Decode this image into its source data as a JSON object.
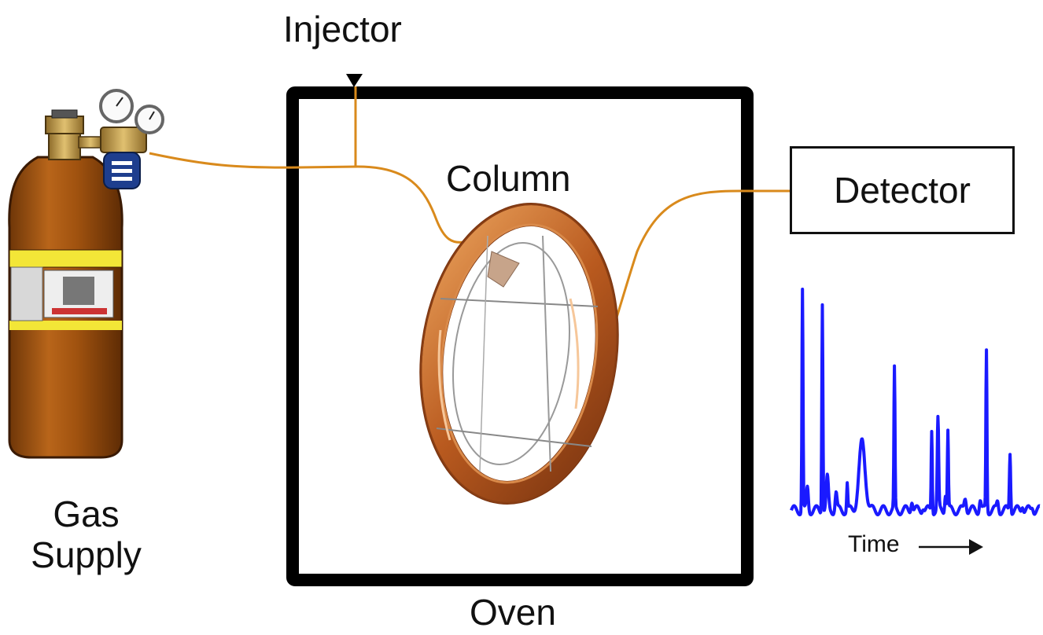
{
  "labels": {
    "injector": "Injector",
    "column": "Column",
    "detector": "Detector",
    "gas_line1": "Gas",
    "gas_line2": "Supply",
    "oven": "Oven",
    "time": "Time"
  },
  "colors": {
    "line": "#d98a1c",
    "oven_frame": "#000000",
    "cylinder": "#a0520f",
    "cylinder_band": "#f3e637",
    "column_copper": "#c8702c",
    "chromatogram": "#1a1aff"
  },
  "icons": {
    "cylinder": "gas-cylinder-icon",
    "regulator": "pressure-regulator-icon",
    "arrow": "right-arrow-icon"
  },
  "chromatogram": {
    "baseline": 0.04,
    "peaks": [
      {
        "t": 0.045,
        "h": 1.0,
        "w": 0.006
      },
      {
        "t": 0.065,
        "h": 0.1,
        "w": 0.01
      },
      {
        "t": 0.125,
        "h": 0.93,
        "w": 0.006
      },
      {
        "t": 0.145,
        "h": 0.14,
        "w": 0.012
      },
      {
        "t": 0.18,
        "h": 0.08,
        "w": 0.01
      },
      {
        "t": 0.225,
        "h": 0.12,
        "w": 0.006
      },
      {
        "t": 0.285,
        "h": 0.3,
        "w": 0.035
      },
      {
        "t": 0.415,
        "h": 0.62,
        "w": 0.006
      },
      {
        "t": 0.485,
        "h": 0.05,
        "w": 0.01
      },
      {
        "t": 0.53,
        "h": 0.02,
        "w": 0.01
      },
      {
        "t": 0.565,
        "h": 0.36,
        "w": 0.006
      },
      {
        "t": 0.59,
        "h": 0.4,
        "w": 0.008
      },
      {
        "t": 0.62,
        "h": 0.08,
        "w": 0.008
      },
      {
        "t": 0.63,
        "h": 0.35,
        "w": 0.006
      },
      {
        "t": 0.7,
        "h": 0.06,
        "w": 0.012
      },
      {
        "t": 0.76,
        "h": 0.05,
        "w": 0.01
      },
      {
        "t": 0.785,
        "h": 0.71,
        "w": 0.006
      },
      {
        "t": 0.83,
        "h": 0.04,
        "w": 0.01
      },
      {
        "t": 0.88,
        "h": 0.26,
        "w": 0.007
      },
      {
        "t": 0.93,
        "h": 0.03,
        "w": 0.01
      },
      {
        "t": 0.97,
        "h": 0.02,
        "w": 0.01
      }
    ]
  }
}
